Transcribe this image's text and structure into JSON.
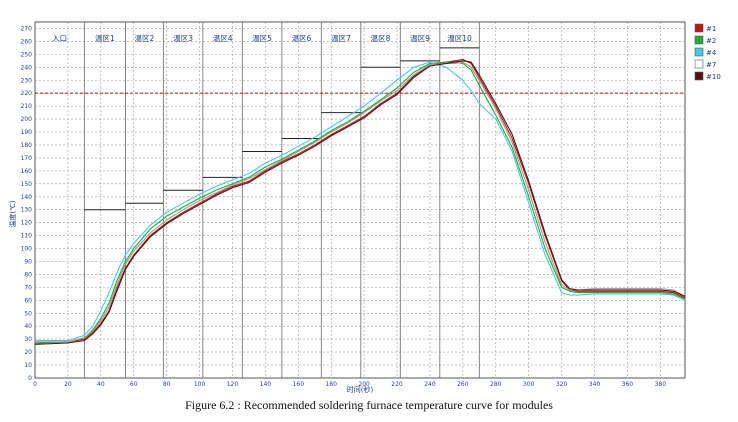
{
  "caption": "Figure 6.2 : Recommended soldering furnace temperature curve for modules",
  "chart_data": {
    "type": "line",
    "xlabel": "时间(秒)",
    "ylabel": "温度(℃)",
    "xlim": [
      0,
      395
    ],
    "ylim": [
      0,
      275
    ],
    "x_ticks": [
      0,
      20,
      40,
      60,
      80,
      100,
      120,
      140,
      160,
      180,
      200,
      220,
      240,
      260,
      280,
      300,
      320,
      340,
      360,
      380
    ],
    "y_ticks": [
      0,
      10,
      20,
      30,
      40,
      50,
      60,
      70,
      80,
      90,
      100,
      110,
      120,
      130,
      140,
      150,
      160,
      170,
      180,
      190,
      200,
      210,
      220,
      230,
      240,
      250,
      260,
      270
    ],
    "reference_line": {
      "y": 220,
      "color": "#cc2222",
      "style": "dashed"
    },
    "zones": [
      {
        "label": "入口",
        "x_start": 0,
        "x_end": 30,
        "set_temp": null
      },
      {
        "label": "温区1",
        "x_start": 30,
        "x_end": 55,
        "set_temp": 130
      },
      {
        "label": "温区2",
        "x_start": 55,
        "x_end": 78,
        "set_temp": 135
      },
      {
        "label": "温区3",
        "x_start": 78,
        "x_end": 102,
        "set_temp": 145
      },
      {
        "label": "温区4",
        "x_start": 102,
        "x_end": 126,
        "set_temp": 155
      },
      {
        "label": "温区5",
        "x_start": 126,
        "x_end": 150,
        "set_temp": 175
      },
      {
        "label": "温区6",
        "x_start": 150,
        "x_end": 174,
        "set_temp": 185
      },
      {
        "label": "温区7",
        "x_start": 174,
        "x_end": 198,
        "set_temp": 205
      },
      {
        "label": "温区8",
        "x_start": 198,
        "x_end": 222,
        "set_temp": 240
      },
      {
        "label": "温区9",
        "x_start": 222,
        "x_end": 246,
        "set_temp": 245
      },
      {
        "label": "温区10",
        "x_start": 246,
        "x_end": 270,
        "set_temp": 255
      }
    ],
    "legend": {
      "position": "right",
      "entries": [
        "#1",
        "#2",
        "#4",
        "#7",
        "#10"
      ]
    },
    "series": [
      {
        "name": "#1",
        "color": "#c01818",
        "x": [
          0,
          20,
          30,
          35,
          40,
          45,
          50,
          55,
          60,
          70,
          80,
          90,
          100,
          110,
          120,
          130,
          140,
          150,
          160,
          170,
          180,
          190,
          200,
          210,
          220,
          230,
          240,
          250,
          255,
          260,
          265,
          270,
          280,
          290,
          300,
          310,
          320,
          325,
          330,
          340,
          360,
          380,
          388,
          395
        ],
        "y": [
          27,
          28,
          30,
          35,
          42,
          52,
          70,
          85,
          95,
          110,
          120,
          128,
          135,
          142,
          148,
          152,
          160,
          167,
          173,
          180,
          188,
          195,
          202,
          212,
          220,
          233,
          242,
          244,
          245,
          246,
          243,
          232,
          210,
          185,
          150,
          110,
          75,
          68,
          67,
          67,
          67,
          67,
          66,
          62
        ]
      },
      {
        "name": "#2",
        "color": "#22aa33",
        "x": [
          0,
          20,
          30,
          35,
          40,
          45,
          50,
          55,
          60,
          70,
          80,
          90,
          100,
          110,
          120,
          130,
          140,
          150,
          160,
          170,
          180,
          190,
          200,
          210,
          220,
          230,
          240,
          250,
          255,
          260,
          265,
          270,
          280,
          290,
          300,
          310,
          320,
          325,
          330,
          340,
          360,
          380,
          388,
          395
        ],
        "y": [
          27,
          28,
          31,
          37,
          46,
          58,
          76,
          90,
          100,
          115,
          125,
          132,
          139,
          145,
          150,
          155,
          163,
          169,
          176,
          183,
          191,
          198,
          206,
          215,
          224,
          236,
          243,
          244,
          244,
          243,
          238,
          226,
          203,
          178,
          140,
          100,
          70,
          67,
          66,
          66,
          66,
          66,
          65,
          61
        ]
      },
      {
        "name": "#4",
        "color": "#44ccdd",
        "x": [
          0,
          20,
          30,
          35,
          40,
          45,
          50,
          55,
          60,
          70,
          80,
          90,
          100,
          110,
          120,
          130,
          140,
          150,
          160,
          170,
          180,
          190,
          200,
          210,
          220,
          230,
          240,
          250,
          255,
          260,
          265,
          270,
          280,
          290,
          300,
          310,
          320,
          325,
          330,
          340,
          360,
          380,
          388,
          395
        ],
        "y": [
          29,
          29,
          33,
          40,
          52,
          66,
          82,
          95,
          104,
          118,
          128,
          135,
          142,
          148,
          153,
          158,
          166,
          172,
          179,
          186,
          194,
          202,
          210,
          220,
          230,
          240,
          244,
          240,
          235,
          230,
          222,
          212,
          200,
          175,
          135,
          95,
          66,
          64,
          64,
          65,
          65,
          65,
          64,
          60
        ]
      },
      {
        "name": "#7",
        "color": "#999999",
        "x": [
          0,
          20,
          30,
          35,
          40,
          45,
          50,
          55,
          60,
          70,
          80,
          90,
          100,
          110,
          120,
          130,
          140,
          150,
          160,
          170,
          180,
          190,
          200,
          210,
          220,
          230,
          240,
          250,
          255,
          260,
          265,
          270,
          280,
          290,
          300,
          310,
          320,
          325,
          330,
          340,
          360,
          380,
          388,
          395
        ],
        "y": [
          28,
          28,
          31,
          36,
          44,
          55,
          73,
          88,
          98,
          112,
          122,
          130,
          137,
          143,
          149,
          154,
          161,
          168,
          175,
          182,
          190,
          197,
          205,
          214,
          222,
          234,
          242,
          243,
          243,
          244,
          240,
          230,
          208,
          182,
          145,
          105,
          72,
          68,
          68,
          69,
          69,
          69,
          68,
          63
        ]
      },
      {
        "name": "#10",
        "color": "#5a1010",
        "x": [
          0,
          20,
          30,
          35,
          40,
          45,
          50,
          55,
          60,
          70,
          80,
          90,
          100,
          110,
          120,
          130,
          140,
          150,
          160,
          170,
          180,
          190,
          200,
          210,
          220,
          230,
          240,
          250,
          255,
          260,
          265,
          270,
          280,
          290,
          300,
          310,
          320,
          325,
          330,
          340,
          360,
          380,
          388,
          395
        ],
        "y": [
          26,
          27,
          29,
          34,
          41,
          51,
          68,
          84,
          94,
          109,
          119,
          127,
          134,
          141,
          147,
          151,
          159,
          166,
          172,
          179,
          187,
          194,
          201,
          211,
          219,
          232,
          241,
          243,
          244,
          245,
          244,
          234,
          212,
          188,
          152,
          112,
          76,
          69,
          68,
          68,
          68,
          68,
          67,
          63
        ]
      }
    ]
  }
}
